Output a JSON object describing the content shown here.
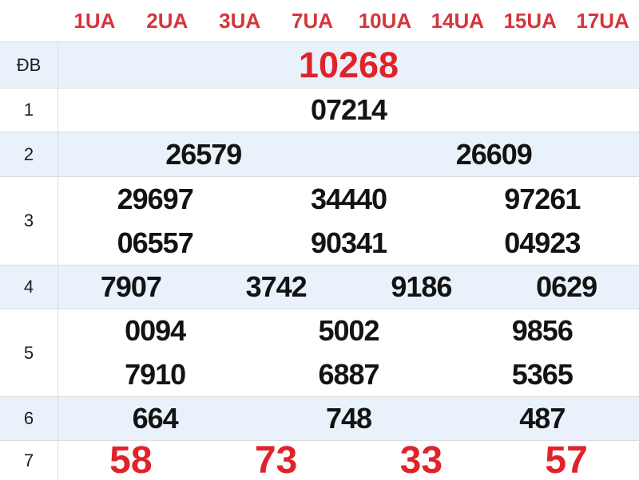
{
  "colors": {
    "accent_red": "#e1222a",
    "header_red": "#d5353c",
    "zebra_row_bg": "#e9f2fa",
    "border": "#dcdcdc",
    "number_text": "#131313"
  },
  "table": {
    "column_headers": [
      "1UA",
      "2UA",
      "3UA",
      "7UA",
      "10UA",
      "14UA",
      "15UA",
      "17UA"
    ],
    "rows": [
      {
        "label": "ĐB",
        "lines": [
          [
            "10268"
          ]
        ]
      },
      {
        "label": "1",
        "lines": [
          [
            "07214"
          ]
        ]
      },
      {
        "label": "2",
        "lines": [
          [
            "26579",
            "26609"
          ]
        ]
      },
      {
        "label": "3",
        "lines": [
          [
            "29697",
            "34440",
            "97261"
          ],
          [
            "06557",
            "90341",
            "04923"
          ]
        ]
      },
      {
        "label": "4",
        "lines": [
          [
            "7907",
            "3742",
            "9186",
            "0629"
          ]
        ]
      },
      {
        "label": "5",
        "lines": [
          [
            "0094",
            "5002",
            "9856"
          ],
          [
            "7910",
            "6887",
            "5365"
          ]
        ]
      },
      {
        "label": "6",
        "lines": [
          [
            "664",
            "748",
            "487"
          ]
        ]
      },
      {
        "label": "7",
        "lines": [
          [
            "58",
            "73",
            "33",
            "57"
          ]
        ]
      }
    ]
  }
}
